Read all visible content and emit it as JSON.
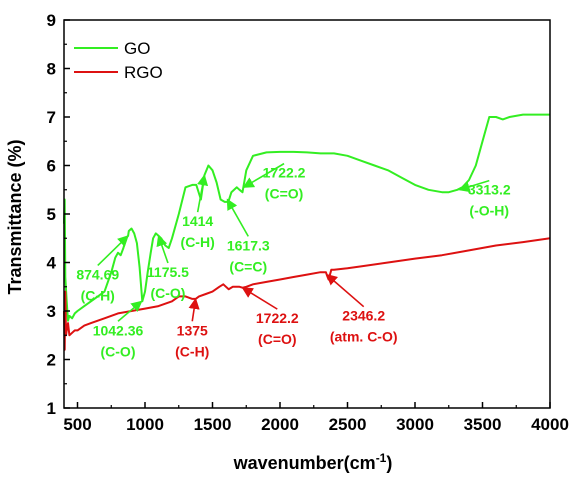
{
  "chart_data": {
    "type": "line",
    "xlabel": "wavenumber(cm",
    "xlabel_sup": "-1",
    "xlabel_end": ")",
    "ylabel": "Transmittance (%)",
    "xlim": [
      400,
      4000
    ],
    "ylim": [
      1,
      9
    ],
    "x_ticks": [
      500,
      1000,
      1500,
      2000,
      2500,
      3000,
      3500,
      4000
    ],
    "y_ticks": [
      1,
      2,
      3,
      4,
      5,
      6,
      7,
      8,
      9
    ],
    "x_tick_labels": [
      "500",
      "1000",
      "1500",
      "2000",
      "2500",
      "3000",
      "3500",
      "4000"
    ],
    "y_tick_labels": [
      "1",
      "2",
      "3",
      "4",
      "5",
      "6",
      "7",
      "8",
      "9"
    ],
    "grid": false,
    "legend_position": "top-left",
    "series": [
      {
        "name": "GO",
        "color": "#33ee22",
        "x": [
          400,
          405,
          410,
          420,
          430,
          440,
          460,
          480,
          500,
          550,
          600,
          650,
          700,
          750,
          780,
          800,
          820,
          840,
          860,
          874.69,
          880,
          900,
          920,
          940,
          960,
          980,
          1000,
          1020,
          1042.36,
          1060,
          1080,
          1100,
          1120,
          1150,
          1175.5,
          1200,
          1250,
          1300,
          1350,
          1380,
          1414,
          1440,
          1470,
          1500,
          1530,
          1560,
          1590,
          1617.3,
          1640,
          1680,
          1700,
          1722.2,
          1750,
          1800,
          1900,
          2000,
          2100,
          2200,
          2300,
          2400,
          2500,
          2600,
          2700,
          2800,
          2900,
          3000,
          3100,
          3200,
          3250,
          3313.2,
          3350,
          3400,
          3450,
          3500,
          3550,
          3600,
          3650,
          3700,
          3800,
          3900,
          4000
        ],
        "y": [
          4.8,
          5.3,
          3.7,
          3.2,
          2.8,
          2.9,
          2.85,
          2.95,
          3.0,
          3.1,
          3.2,
          3.3,
          3.4,
          3.8,
          4.1,
          4.2,
          4.15,
          4.3,
          4.5,
          4.55,
          4.65,
          4.7,
          4.6,
          4.4,
          3.9,
          3.2,
          3.4,
          3.8,
          4.2,
          4.5,
          4.6,
          4.55,
          4.5,
          4.35,
          4.3,
          4.5,
          5.0,
          5.55,
          5.6,
          5.6,
          5.3,
          5.8,
          6.0,
          5.9,
          5.65,
          5.3,
          5.25,
          5.25,
          5.45,
          5.55,
          5.5,
          5.45,
          5.9,
          6.2,
          6.27,
          6.28,
          6.28,
          6.27,
          6.25,
          6.25,
          6.2,
          6.1,
          6.0,
          5.9,
          5.75,
          5.6,
          5.5,
          5.45,
          5.45,
          5.5,
          5.55,
          5.7,
          6.0,
          6.5,
          7.0,
          7.0,
          6.95,
          7.0,
          7.05,
          7.05,
          7.05
        ]
      },
      {
        "name": "RGO",
        "color": "#dd1111",
        "x": [
          400,
          405,
          410,
          415,
          420,
          430,
          440,
          460,
          480,
          500,
          550,
          600,
          700,
          800,
          900,
          1000,
          1100,
          1200,
          1250,
          1300,
          1350,
          1375,
          1400,
          1450,
          1500,
          1550,
          1580,
          1600,
          1620,
          1650,
          1700,
          1722.2,
          1750,
          1800,
          1900,
          2000,
          2100,
          2200,
          2300,
          2340,
          2346.2,
          2360,
          2380,
          2400,
          2500,
          2600,
          2800,
          3000,
          3200,
          3400,
          3600,
          3800,
          4000
        ],
        "y": [
          3.0,
          2.2,
          3.4,
          2.5,
          2.6,
          2.75,
          2.5,
          2.55,
          2.6,
          2.6,
          2.7,
          2.75,
          2.85,
          2.95,
          3.0,
          3.05,
          3.1,
          3.2,
          3.3,
          3.3,
          3.25,
          3.25,
          3.3,
          3.35,
          3.4,
          3.5,
          3.55,
          3.5,
          3.45,
          3.5,
          3.5,
          3.48,
          3.5,
          3.55,
          3.6,
          3.65,
          3.7,
          3.75,
          3.8,
          3.8,
          3.75,
          3.65,
          3.85,
          3.85,
          3.88,
          3.92,
          4.0,
          4.08,
          4.15,
          4.25,
          4.35,
          4.42,
          4.5
        ]
      }
    ],
    "annotations": [
      {
        "series": "GO",
        "lines": [
          "874.69",
          "(C-H)"
        ],
        "target": [
          874.69,
          4.55
        ],
        "label_pos": [
          650,
          3.65
        ]
      },
      {
        "series": "GO",
        "lines": [
          "1042.36",
          "(C-O)"
        ],
        "target": [
          975,
          3.2
        ],
        "label_pos": [
          800,
          2.5
        ]
      },
      {
        "series": "GO",
        "lines": [
          "1175.5",
          "(C-O)"
        ],
        "target": [
          1100,
          4.55
        ],
        "label_pos": [
          1170,
          3.7
        ]
      },
      {
        "series": "GO",
        "lines": [
          "1414",
          "(C-H)"
        ],
        "target": [
          1440,
          5.8
        ],
        "label_pos": [
          1390,
          4.75
        ]
      },
      {
        "series": "GO",
        "lines": [
          "1617.3",
          "(C=C)"
        ],
        "target": [
          1610,
          5.3
        ],
        "label_pos": [
          1765,
          4.25
        ]
      },
      {
        "series": "GO",
        "lines": [
          "1722.2",
          "(C=O)"
        ],
        "target": [
          1730,
          5.55
        ],
        "label_pos": [
          2030,
          5.75
        ]
      },
      {
        "series": "GO",
        "lines": [
          "3313.2",
          "(-O-H)"
        ],
        "target": [
          3330,
          5.5
        ],
        "label_pos": [
          3550,
          5.4
        ]
      },
      {
        "series": "RGO",
        "lines": [
          "1375",
          "(C-H)"
        ],
        "target": [
          1375,
          3.25
        ],
        "label_pos": [
          1350,
          2.5
        ]
      },
      {
        "series": "RGO",
        "lines": [
          "1722.2",
          "(C=O)"
        ],
        "target": [
          1722.2,
          3.48
        ],
        "label_pos": [
          1980,
          2.75
        ]
      },
      {
        "series": "RGO",
        "lines": [
          "2346.2",
          "(atm. C-O)"
        ],
        "target": [
          2346.2,
          3.75
        ],
        "label_pos": [
          2620,
          2.8
        ]
      }
    ]
  }
}
